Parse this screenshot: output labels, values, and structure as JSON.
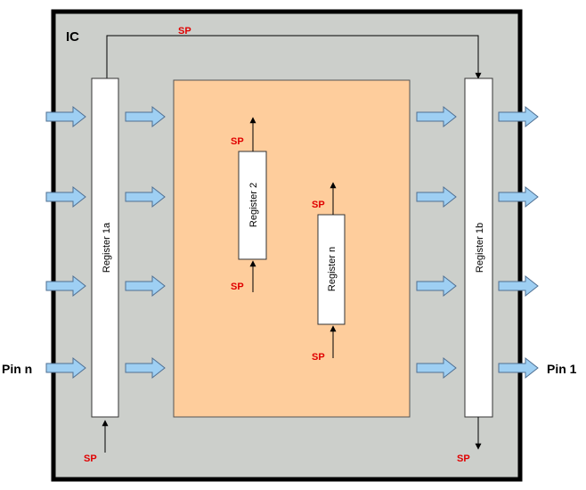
{
  "ic_label": "IC",
  "sp_label": "SP",
  "pin_left": "Pin n",
  "pin_right": "Pin 1",
  "registers": {
    "r1a": "Register 1a",
    "r1b": "Register 1b",
    "r2": "Register 2",
    "rn": "Register n"
  },
  "colors": {
    "ic_fill": "#cccfcb",
    "ic_border": "#000000",
    "core_fill": "#fecd9c",
    "arrow_fill": "#9ecff3",
    "arrow_stroke": "#4f6f92",
    "sp_text": "#e00000"
  }
}
